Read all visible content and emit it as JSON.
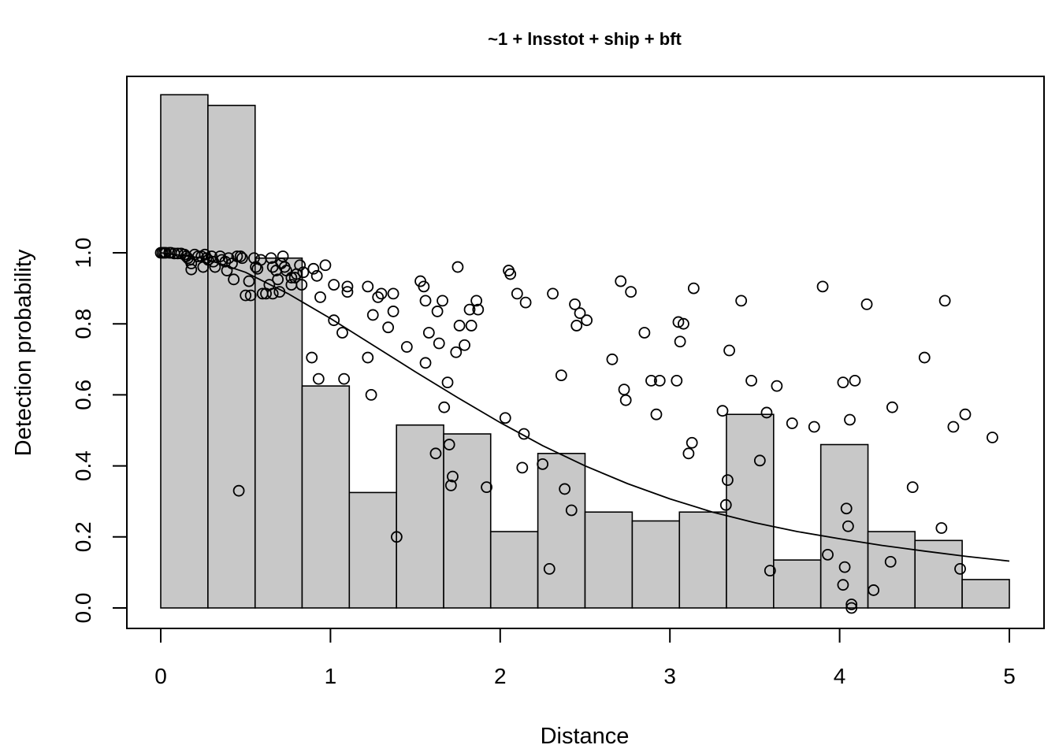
{
  "chart_data": {
    "type": "bar",
    "title": "~1 + lnsstot + ship + bft",
    "xlabel": "Distance",
    "ylabel": "Detection probability",
    "xlim": [
      0,
      5
    ],
    "ylim": [
      0,
      1.0
    ],
    "x_ticks": [
      "0",
      "1",
      "2",
      "3",
      "4",
      "5"
    ],
    "y_ticks": [
      "0.0",
      "0.2",
      "0.4",
      "0.6",
      "0.8",
      "1.0"
    ],
    "histogram": {
      "bin_edges": [
        0,
        0.278,
        0.556,
        0.833,
        1.111,
        1.389,
        1.667,
        1.944,
        2.222,
        2.5,
        2.778,
        3.056,
        3.333,
        3.611,
        3.889,
        4.167,
        4.444,
        4.722,
        5.0
      ],
      "values": [
        1.445,
        1.415,
        0.985,
        0.625,
        0.325,
        0.515,
        0.49,
        0.215,
        0.435,
        0.27,
        0.245,
        0.27,
        0.545,
        0.135,
        0.46,
        0.215,
        0.19,
        0.08
      ]
    },
    "fitted_curve": {
      "x": [
        0,
        0.25,
        0.5,
        0.75,
        1.0,
        1.25,
        1.5,
        1.75,
        2.0,
        2.25,
        2.5,
        2.75,
        3.0,
        3.25,
        3.5,
        3.75,
        4.0,
        4.25,
        4.5,
        4.75,
        5.0
      ],
      "y": [
        1.0,
        0.985,
        0.945,
        0.885,
        0.815,
        0.74,
        0.665,
        0.592,
        0.522,
        0.457,
        0.4,
        0.35,
        0.307,
        0.27,
        0.24,
        0.215,
        0.195,
        0.176,
        0.16,
        0.145,
        0.132
      ]
    },
    "points": [
      [
        0,
        1.0
      ],
      [
        0.01,
        1.0
      ],
      [
        0.02,
        1.0
      ],
      [
        0.03,
        1.0
      ],
      [
        0.05,
        1.0
      ],
      [
        0.06,
        1.0
      ],
      [
        0.08,
        0.998
      ],
      [
        0.1,
        0.998
      ],
      [
        0.12,
        0.998
      ],
      [
        0.14,
        0.995
      ],
      [
        0.15,
        0.99
      ],
      [
        0.16,
        0.985
      ],
      [
        0.17,
        0.98
      ],
      [
        0.18,
        0.97
      ],
      [
        0.18,
        0.953
      ],
      [
        0.2,
        0.995
      ],
      [
        0.22,
        0.99
      ],
      [
        0.24,
        0.99
      ],
      [
        0.25,
        0.96
      ],
      [
        0.26,
        0.995
      ],
      [
        0.27,
        0.985
      ],
      [
        0.28,
        0.98
      ],
      [
        0.3,
        0.99
      ],
      [
        0.31,
        0.975
      ],
      [
        0.32,
        0.96
      ],
      [
        0.35,
        0.99
      ],
      [
        0.36,
        0.98
      ],
      [
        0.38,
        0.975
      ],
      [
        0.39,
        0.95
      ],
      [
        0.4,
        0.985
      ],
      [
        0.42,
        0.97
      ],
      [
        0.43,
        0.925
      ],
      [
        0.45,
        0.99
      ],
      [
        0.46,
        0.33
      ],
      [
        0.47,
        0.99
      ],
      [
        0.48,
        0.985
      ],
      [
        0.5,
        0.88
      ],
      [
        0.52,
        0.92
      ],
      [
        0.53,
        0.88
      ],
      [
        0.55,
        0.985
      ],
      [
        0.56,
        0.96
      ],
      [
        0.57,
        0.955
      ],
      [
        0.59,
        0.98
      ],
      [
        0.6,
        0.885
      ],
      [
        0.62,
        0.885
      ],
      [
        0.64,
        0.91
      ],
      [
        0.65,
        0.985
      ],
      [
        0.66,
        0.96
      ],
      [
        0.66,
        0.885
      ],
      [
        0.68,
        0.95
      ],
      [
        0.69,
        0.925
      ],
      [
        0.7,
        0.89
      ],
      [
        0.71,
        0.97
      ],
      [
        0.72,
        0.99
      ],
      [
        0.73,
        0.96
      ],
      [
        0.74,
        0.95
      ],
      [
        0.77,
        0.93
      ],
      [
        0.77,
        0.91
      ],
      [
        0.79,
        0.93
      ],
      [
        0.8,
        0.94
      ],
      [
        0.82,
        0.965
      ],
      [
        0.83,
        0.91
      ],
      [
        0.84,
        0.945
      ],
      [
        0.89,
        0.705
      ],
      [
        0.9,
        0.955
      ],
      [
        0.92,
        0.935
      ],
      [
        0.93,
        0.645
      ],
      [
        0.94,
        0.875
      ],
      [
        0.97,
        0.965
      ],
      [
        1.02,
        0.81
      ],
      [
        1.02,
        0.91
      ],
      [
        1.07,
        0.775
      ],
      [
        1.08,
        0.645
      ],
      [
        1.1,
        0.905
      ],
      [
        1.1,
        0.89
      ],
      [
        1.22,
        0.905
      ],
      [
        1.22,
        0.705
      ],
      [
        1.24,
        0.6
      ],
      [
        1.25,
        0.825
      ],
      [
        1.28,
        0.875
      ],
      [
        1.3,
        0.885
      ],
      [
        1.34,
        0.79
      ],
      [
        1.37,
        0.885
      ],
      [
        1.37,
        0.835
      ],
      [
        1.39,
        0.2
      ],
      [
        1.45,
        0.735
      ],
      [
        1.53,
        0.92
      ],
      [
        1.55,
        0.905
      ],
      [
        1.56,
        0.865
      ],
      [
        1.56,
        0.69
      ],
      [
        1.58,
        0.775
      ],
      [
        1.62,
        0.435
      ],
      [
        1.63,
        0.835
      ],
      [
        1.64,
        0.745
      ],
      [
        1.66,
        0.865
      ],
      [
        1.67,
        0.565
      ],
      [
        1.69,
        0.635
      ],
      [
        1.7,
        0.46
      ],
      [
        1.71,
        0.345
      ],
      [
        1.72,
        0.37
      ],
      [
        1.74,
        0.72
      ],
      [
        1.75,
        0.96
      ],
      [
        1.76,
        0.795
      ],
      [
        1.79,
        0.74
      ],
      [
        1.82,
        0.84
      ],
      [
        1.83,
        0.795
      ],
      [
        1.86,
        0.865
      ],
      [
        1.87,
        0.84
      ],
      [
        1.92,
        0.34
      ],
      [
        2.03,
        0.535
      ],
      [
        2.05,
        0.95
      ],
      [
        2.06,
        0.94
      ],
      [
        2.1,
        0.885
      ],
      [
        2.13,
        0.395
      ],
      [
        2.14,
        0.49
      ],
      [
        2.15,
        0.86
      ],
      [
        2.25,
        0.405
      ],
      [
        2.29,
        0.11
      ],
      [
        2.31,
        0.885
      ],
      [
        2.36,
        0.655
      ],
      [
        2.38,
        0.335
      ],
      [
        2.42,
        0.275
      ],
      [
        2.44,
        0.855
      ],
      [
        2.45,
        0.795
      ],
      [
        2.47,
        0.83
      ],
      [
        2.51,
        0.81
      ],
      [
        2.66,
        0.7
      ],
      [
        2.71,
        0.92
      ],
      [
        2.73,
        0.615
      ],
      [
        2.74,
        0.585
      ],
      [
        2.77,
        0.89
      ],
      [
        2.85,
        0.775
      ],
      [
        2.89,
        0.64
      ],
      [
        2.92,
        0.545
      ],
      [
        2.94,
        0.64
      ],
      [
        3.04,
        0.64
      ],
      [
        3.05,
        0.805
      ],
      [
        3.06,
        0.75
      ],
      [
        3.08,
        0.8
      ],
      [
        3.11,
        0.435
      ],
      [
        3.13,
        0.465
      ],
      [
        3.14,
        0.9
      ],
      [
        3.31,
        0.555
      ],
      [
        3.33,
        0.29
      ],
      [
        3.34,
        0.36
      ],
      [
        3.35,
        0.725
      ],
      [
        3.42,
        0.865
      ],
      [
        3.48,
        0.64
      ],
      [
        3.53,
        0.415
      ],
      [
        3.57,
        0.55
      ],
      [
        3.59,
        0.105
      ],
      [
        3.63,
        0.625
      ],
      [
        3.72,
        0.52
      ],
      [
        3.85,
        0.51
      ],
      [
        3.9,
        0.905
      ],
      [
        3.93,
        0.15
      ],
      [
        4.02,
        0.065
      ],
      [
        4.02,
        0.635
      ],
      [
        4.03,
        0.115
      ],
      [
        4.04,
        0.28
      ],
      [
        4.05,
        0.23
      ],
      [
        4.06,
        0.53
      ],
      [
        4.07,
        0.01
      ],
      [
        4.07,
        0.0
      ],
      [
        4.09,
        0.64
      ],
      [
        4.16,
        0.855
      ],
      [
        4.2,
        0.05
      ],
      [
        4.3,
        0.13
      ],
      [
        4.31,
        0.565
      ],
      [
        4.43,
        0.34
      ],
      [
        4.5,
        0.705
      ],
      [
        4.6,
        0.225
      ],
      [
        4.62,
        0.865
      ],
      [
        4.67,
        0.51
      ],
      [
        4.71,
        0.11
      ],
      [
        4.74,
        0.545
      ],
      [
        4.9,
        0.48
      ]
    ],
    "grid": false,
    "legend": "none"
  }
}
